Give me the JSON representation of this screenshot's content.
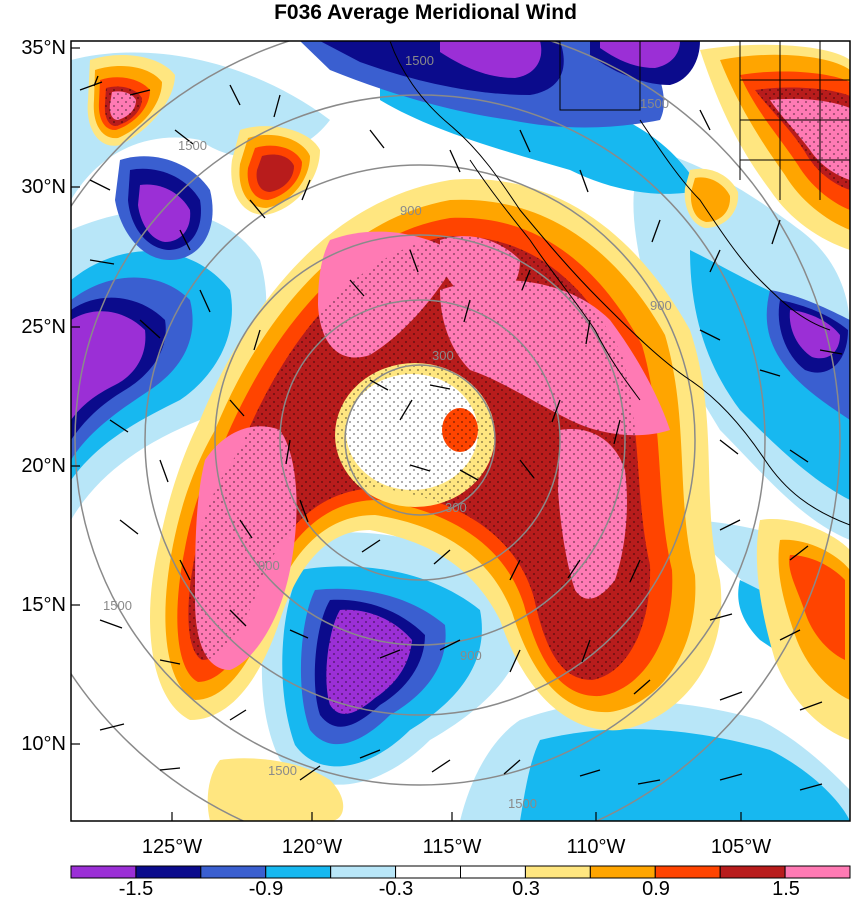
{
  "title": "F036 Average Meridional Wind",
  "lat_labels": [
    "35°N",
    "30°N",
    "25°N",
    "20°N",
    "15°N",
    "10°N"
  ],
  "lon_labels": [
    "125°W",
    "120°W",
    "115°W",
    "110°W",
    "105°W"
  ],
  "colorbar": {
    "colors": [
      "#9b2fd6",
      "#0b0b8c",
      "#3a5fd0",
      "#17b8f0",
      "#b8e6f8",
      "#ffffff",
      "#ffffff",
      "#ffe680",
      "#ffa500",
      "#ff4400",
      "#b81c1c",
      "#ff7ab4"
    ],
    "labels": [
      "-1.5",
      "-0.9",
      "-0.3",
      "0.3",
      "0.9",
      "1.5"
    ]
  },
  "contour_labels": [
    "1500",
    "1500",
    "1500",
    "900",
    "900",
    "300",
    "300",
    "900",
    "900",
    "1500",
    "1500",
    "1500"
  ]
}
